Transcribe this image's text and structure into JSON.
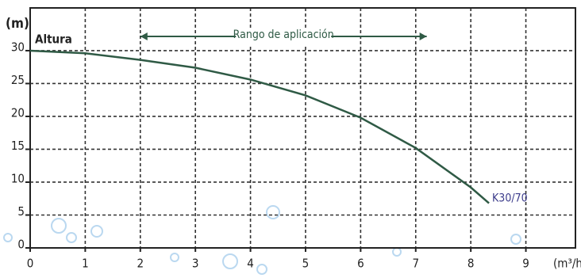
{
  "chart_data": {
    "type": "line",
    "y_label": "(m)",
    "y_title": "Altura",
    "x_label": "(m³/h",
    "range_label": "Rango de aplicación",
    "range": [
      2,
      7.2
    ],
    "x": [
      0,
      1,
      2,
      3,
      4,
      5,
      6,
      7,
      8,
      8.33
    ],
    "series": [
      {
        "name": "K30/70",
        "color": "#2f5a45",
        "values": [
          30,
          29.6,
          28.6,
          27.4,
          25.6,
          23.2,
          19.8,
          15.2,
          9.2,
          6.8
        ]
      }
    ],
    "xlim": [
      0,
      9.9
    ],
    "xticks": [
      0,
      1,
      2,
      3,
      4,
      5,
      6,
      7,
      8,
      9
    ],
    "ylim": [
      0,
      36.5
    ],
    "yticks": [
      0,
      5,
      10,
      15,
      20,
      25,
      30
    ],
    "grid": true
  }
}
